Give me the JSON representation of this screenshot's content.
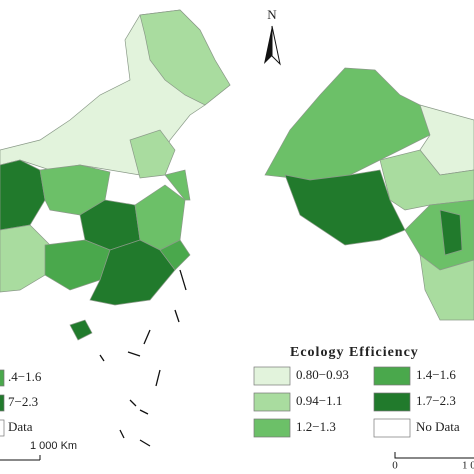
{
  "left_panel": {
    "legend": [
      {
        "label": ".4−1.6",
        "color": "#4aa84c"
      },
      {
        "label": "7−2.3",
        "color": "#217a2c"
      },
      {
        "label": "Data",
        "color": "#ffffff"
      }
    ],
    "scale_label": "1 000 Km"
  },
  "right_panel": {
    "north_label": "N",
    "legend": {
      "title": "Ecology Efficiency",
      "items": [
        {
          "label": "0.80−0.93",
          "color": "#e2f3dc"
        },
        {
          "label": "0.94−1.1",
          "color": "#a9dc9f"
        },
        {
          "label": "1.2−1.3",
          "color": "#6cc068"
        },
        {
          "label": "1.4−1.6",
          "color": "#4aa84c"
        },
        {
          "label": "1.7−2.3",
          "color": "#217a2c"
        },
        {
          "label": "No Data",
          "color": "#ffffff"
        }
      ]
    },
    "scale_labels": [
      "0",
      "1 0"
    ]
  }
}
